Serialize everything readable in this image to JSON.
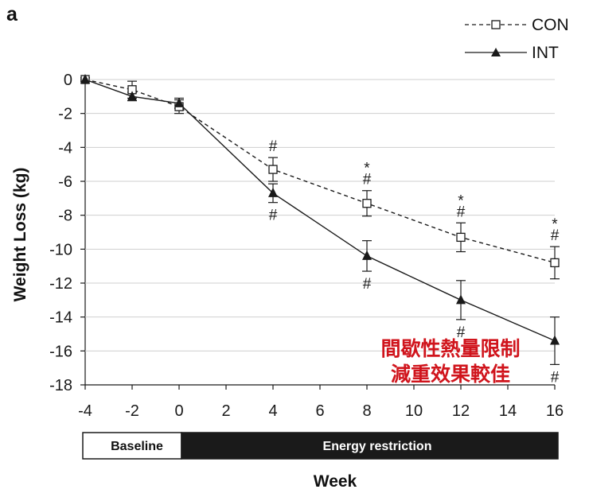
{
  "panel_letter": "a",
  "overlay_text": [
    "間歇性熱量限制",
    "減重效果較佳"
  ],
  "phases": {
    "baseline": "Baseline",
    "restriction": "Energy restriction"
  },
  "colors": {
    "overlay": "#d0141c",
    "ink": "#1a1a1a",
    "band_dark": "#1a1a1a"
  },
  "chart_data": {
    "type": "line",
    "title": "",
    "xlabel": "Week",
    "ylabel": "Weight Loss (kg)",
    "xlim": [
      -4,
      16
    ],
    "ylim": [
      -18,
      0
    ],
    "xticks": [
      -4,
      -2,
      0,
      2,
      4,
      6,
      8,
      10,
      12,
      14,
      16
    ],
    "yticks": [
      0,
      -2,
      -4,
      -6,
      -8,
      -10,
      -12,
      -14,
      -16,
      -18
    ],
    "grid": "horizontal",
    "legend_position": "top-right",
    "series": [
      {
        "name": "CON",
        "line_style": "dashed",
        "marker": "open-square",
        "x": [
          -4,
          -2,
          0,
          4,
          8,
          12,
          16
        ],
        "y": [
          0,
          -0.6,
          -1.6,
          -5.3,
          -7.3,
          -9.3,
          -10.8
        ],
        "err": [
          0.1,
          0.5,
          0.4,
          0.7,
          0.75,
          0.85,
          0.95
        ]
      },
      {
        "name": "INT",
        "line_style": "solid",
        "marker": "filled-triangle",
        "x": [
          -4,
          -2,
          0,
          4,
          8,
          12,
          16
        ],
        "y": [
          0,
          -1.0,
          -1.4,
          -6.7,
          -10.4,
          -13.0,
          -15.4
        ],
        "err": [
          0.1,
          0.25,
          0.3,
          0.55,
          0.9,
          1.15,
          1.4
        ]
      }
    ],
    "annotations": [
      {
        "x": 4,
        "above": [
          "#"
        ],
        "below": [
          "#"
        ]
      },
      {
        "x": 8,
        "above": [
          "*",
          "#"
        ],
        "below": [
          "#"
        ]
      },
      {
        "x": 12,
        "above": [
          "*",
          "#"
        ],
        "below": [
          "#"
        ]
      },
      {
        "x": 16,
        "above": [
          "*",
          "#"
        ],
        "below": [
          "#"
        ]
      }
    ]
  }
}
